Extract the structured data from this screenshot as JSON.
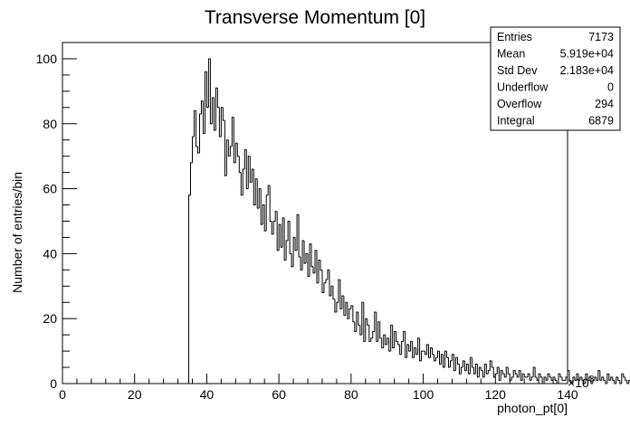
{
  "chart_data": {
    "type": "histogram",
    "title": "Transverse Momentum [0]",
    "xlabel": "photon_pt[0]",
    "ylabel": "Number of entries/bin",
    "x_exponent": "×10",
    "x_exponent_power": "3",
    "xlim": [
      0,
      140
    ],
    "ylim": [
      0,
      105
    ],
    "x_ticks": [
      0,
      20,
      40,
      60,
      80,
      100,
      120,
      140
    ],
    "y_ticks": [
      0,
      20,
      40,
      60,
      80,
      100
    ],
    "grid": false,
    "bin_width": 0.5,
    "x_start": 35,
    "values": [
      58,
      68,
      76,
      84,
      73,
      71,
      83,
      87,
      77,
      96,
      85,
      100,
      80,
      88,
      78,
      91,
      85,
      76,
      85,
      81,
      64,
      75,
      70,
      73,
      82,
      68,
      74,
      70,
      65,
      58,
      66,
      72,
      60,
      70,
      62,
      66,
      55,
      63,
      54,
      60,
      49,
      55,
      47,
      58,
      61,
      50,
      46,
      50,
      53,
      41,
      49,
      42,
      51,
      38,
      44,
      50,
      40,
      36,
      45,
      41,
      52,
      39,
      35,
      44,
      37,
      40,
      33,
      43,
      36,
      34,
      41,
      31,
      38,
      35,
      28,
      31,
      32,
      35,
      27,
      30,
      26,
      22,
      25,
      32,
      23,
      27,
      21,
      25,
      20,
      23,
      24,
      19,
      16,
      22,
      18,
      15,
      25,
      13,
      20,
      18,
      13,
      14,
      16,
      22,
      13,
      19,
      14,
      11,
      15,
      12,
      14,
      10,
      18,
      11,
      16,
      13,
      12,
      9,
      13,
      16,
      8,
      12,
      10,
      13,
      8,
      11,
      9,
      14,
      7,
      10,
      10,
      9,
      12,
      8,
      11,
      9,
      7,
      8,
      10,
      6,
      9,
      5,
      10,
      8,
      5,
      7,
      9,
      4,
      8,
      6,
      3,
      5,
      7,
      4,
      6,
      3,
      8,
      5,
      3,
      6,
      2,
      5,
      4,
      2,
      6,
      3,
      4,
      7,
      5,
      2,
      3,
      5,
      1,
      4,
      3,
      2,
      5,
      3,
      1,
      2,
      4,
      3,
      2,
      4,
      1,
      3,
      2,
      2,
      3,
      1,
      2,
      5,
      2,
      1,
      3,
      2,
      0,
      2,
      1,
      3,
      2,
      1,
      2,
      1,
      0,
      3,
      2,
      1,
      1,
      2,
      4,
      1,
      0,
      2,
      1,
      3,
      1,
      2,
      1,
      0,
      3,
      1,
      2,
      0,
      1,
      2,
      1,
      4,
      1,
      2,
      1,
      0,
      3,
      1,
      2,
      1,
      0,
      2,
      1,
      0,
      3,
      2,
      1,
      0,
      1,
      2,
      0,
      3,
      1,
      2,
      0,
      1,
      3,
      1,
      0,
      2,
      1,
      0,
      4,
      1,
      0,
      2,
      1,
      3,
      0,
      1,
      2,
      0,
      1,
      2,
      0,
      1
    ]
  },
  "stats_box": {
    "rows": [
      {
        "label": "Entries",
        "value": "7173"
      },
      {
        "label": "Mean",
        "value": "5.919e+04"
      },
      {
        "label": "Std Dev",
        "value": "2.183e+04"
      },
      {
        "label": "Underflow",
        "value": "0"
      },
      {
        "label": "Overflow",
        "value": "294"
      },
      {
        "label": "Integral",
        "value": "6879"
      }
    ]
  }
}
